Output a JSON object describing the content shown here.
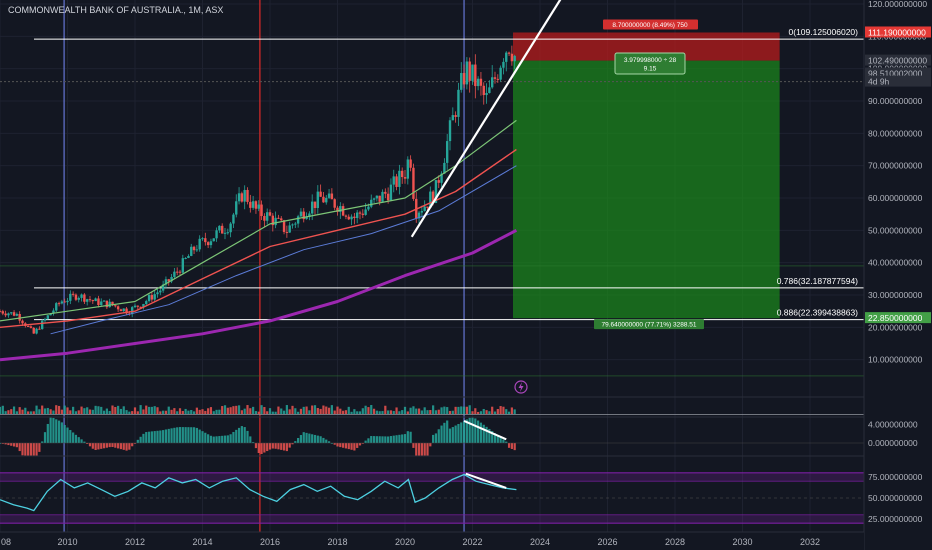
{
  "header": {
    "title": "COMMONWEALTH BANK OF AUSTRALIA., 1M, ASX"
  },
  "colors": {
    "background": "#131722",
    "up_candle": "#26a69a",
    "down_candle": "#ef5350",
    "ma_fast": "#7cc576",
    "ma_mid": "#ef5350",
    "ma_slow": "#5b7bd6",
    "ma_long": "#9c27b0",
    "stop_zone": "#b71c1c",
    "target_zone": "#1b8a1b",
    "rsi_line": "#4dd0e1",
    "trend_line": "#ffffff"
  },
  "chart_data": [
    {
      "type": "candlestick",
      "title": "COMMONWEALTH BANK OF AUSTRALIA., 1M, ASX",
      "x_ticks": [
        "08",
        "2010",
        "2012",
        "2014",
        "2016",
        "2018",
        "2020",
        "2022",
        "2024",
        "2026",
        "2028",
        "2030",
        "2032"
      ],
      "y_ticks": [
        "120.000000000",
        "110.000000000",
        "100.000000000",
        "90.000000000",
        "80.000000000",
        "70.000000000",
        "60.000000000",
        "50.000000000",
        "40.000000000",
        "30.000000000",
        "20.000000000",
        "10.000000000"
      ],
      "ylim": [
        0,
        120
      ],
      "xlim": [
        2008,
        2033.6
      ],
      "price_path": [
        [
          2008.0,
          25
        ],
        [
          2008.5,
          24
        ],
        [
          2009.0,
          18
        ],
        [
          2009.3,
          22
        ],
        [
          2009.8,
          28
        ],
        [
          2010.3,
          30
        ],
        [
          2010.8,
          28
        ],
        [
          2011.3,
          27
        ],
        [
          2011.8,
          25
        ],
        [
          2012.3,
          28
        ],
        [
          2012.8,
          32
        ],
        [
          2013.3,
          38
        ],
        [
          2013.8,
          45
        ],
        [
          2014.3,
          48
        ],
        [
          2014.8,
          52
        ],
        [
          2015.2,
          62
        ],
        [
          2015.6,
          56
        ],
        [
          2016.0,
          54
        ],
        [
          2016.5,
          50
        ],
        [
          2017.0,
          56
        ],
        [
          2017.5,
          60
        ],
        [
          2018.0,
          58
        ],
        [
          2018.5,
          54
        ],
        [
          2019.0,
          58
        ],
        [
          2019.5,
          62
        ],
        [
          2020.0,
          68
        ],
        [
          2020.15,
          74
        ],
        [
          2020.3,
          56
        ],
        [
          2020.6,
          58
        ],
        [
          2020.9,
          62
        ],
        [
          2021.2,
          75
        ],
        [
          2021.5,
          88
        ],
        [
          2021.8,
          100
        ],
        [
          2022.1,
          96
        ],
        [
          2022.4,
          90
        ],
        [
          2022.7,
          98
        ],
        [
          2022.9,
          105
        ],
        [
          2023.1,
          108
        ],
        [
          2023.3,
          102.49
        ]
      ],
      "ma_series": [
        {
          "key": "fast",
          "values": [
            [
              2008.0,
              22
            ],
            [
              2010,
              25
            ],
            [
              2012,
              28
            ],
            [
              2014,
              40
            ],
            [
              2016,
              52
            ],
            [
              2018,
              56
            ],
            [
              2020,
              60
            ],
            [
              2021.5,
              70
            ],
            [
              2023.3,
              84
            ]
          ]
        },
        {
          "key": "mid",
          "values": [
            [
              2008.0,
              20
            ],
            [
              2010,
              22
            ],
            [
              2012,
              25
            ],
            [
              2014,
              35
            ],
            [
              2016,
              45
            ],
            [
              2018,
              50
            ],
            [
              2020,
              55
            ],
            [
              2021.5,
              62
            ],
            [
              2023.3,
              75
            ]
          ]
        },
        {
          "key": "slow",
          "values": [
            [
              2009.5,
              18
            ],
            [
              2011,
              22
            ],
            [
              2013,
              27
            ],
            [
              2015,
              36
            ],
            [
              2017,
              44
            ],
            [
              2019,
              49
            ],
            [
              2021,
              56
            ],
            [
              2023.3,
              70
            ]
          ]
        },
        {
          "key": "long",
          "values": [
            [
              2008.0,
              10
            ],
            [
              2010,
              12
            ],
            [
              2012,
              15
            ],
            [
              2014,
              18
            ],
            [
              2016,
              22
            ],
            [
              2018,
              28
            ],
            [
              2020,
              36
            ],
            [
              2022,
              43
            ],
            [
              2023.3,
              50
            ]
          ]
        }
      ],
      "horizontal_lines": [
        {
          "price": 109.12500602,
          "label": "0(109.125006020)"
        },
        {
          "price": 32.187877594,
          "label": "0.786(32.187877594)"
        },
        {
          "price": 22.399438863,
          "label": "0.886(22.399438863)"
        }
      ],
      "trend_line": [
        [
          2020.2,
          48
        ],
        [
          2023.2,
          98
        ]
      ],
      "position": {
        "entry": 102.49,
        "stop": 111.19,
        "target": 22.85,
        "start_x": 2023.2,
        "end_x": 2031.1,
        "stop_label": "8.700000000 (8.49%) 750",
        "entry_label_line1": "3.979998000 ÷ 28",
        "entry_label_line2": "9.15",
        "target_label": "79.640000000 (77.71%) 3288.51"
      },
      "price_axis_labels": [
        {
          "price": 111.19,
          "text": "111.190000000",
          "style": "red"
        },
        {
          "price": 102.49,
          "text": "102.490000000",
          "style": "gray"
        },
        {
          "price": 98.51,
          "text": "98.510002000",
          "style": "gray"
        },
        {
          "price": 96.0,
          "text": "4d 9h",
          "style": "gray"
        },
        {
          "price": 22.85,
          "text": "22.850000000",
          "style": "green"
        }
      ],
      "vertical_markers": [
        {
          "x": 2009.9,
          "color": "#5c6bc0"
        },
        {
          "x": 2015.7,
          "color": "#c62828"
        },
        {
          "x": 2021.75,
          "color": "#5c6bc0"
        }
      ]
    },
    {
      "type": "bar",
      "title": "",
      "series": [
        {
          "values": "volume"
        }
      ]
    },
    {
      "type": "histogram",
      "title": "",
      "y_ticks": [
        "4.000000000",
        "0.000000000"
      ],
      "ylim": [
        -3,
        5
      ]
    },
    {
      "type": "line",
      "title": "",
      "y_ticks": [
        "75.000000000",
        "50.000000000",
        "25.000000000"
      ],
      "ylim": [
        20,
        85
      ],
      "rsi_path": [
        [
          2008.0,
          48
        ],
        [
          2008.4,
          42
        ],
        [
          2008.8,
          38
        ],
        [
          2009.0,
          35
        ],
        [
          2009.4,
          58
        ],
        [
          2009.8,
          72
        ],
        [
          2010.2,
          62
        ],
        [
          2010.6,
          68
        ],
        [
          2011.0,
          60
        ],
        [
          2011.4,
          52
        ],
        [
          2011.8,
          58
        ],
        [
          2012.2,
          68
        ],
        [
          2012.6,
          62
        ],
        [
          2013.0,
          74
        ],
        [
          2013.4,
          68
        ],
        [
          2013.8,
          72
        ],
        [
          2014.2,
          62
        ],
        [
          2014.6,
          70
        ],
        [
          2015.0,
          74
        ],
        [
          2015.4,
          60
        ],
        [
          2015.8,
          52
        ],
        [
          2016.2,
          46
        ],
        [
          2016.6,
          60
        ],
        [
          2017.0,
          66
        ],
        [
          2017.4,
          58
        ],
        [
          2017.8,
          64
        ],
        [
          2018.2,
          52
        ],
        [
          2018.6,
          48
        ],
        [
          2019.0,
          58
        ],
        [
          2019.4,
          70
        ],
        [
          2019.8,
          62
        ],
        [
          2020.1,
          72
        ],
        [
          2020.3,
          45
        ],
        [
          2020.6,
          50
        ],
        [
          2021.0,
          62
        ],
        [
          2021.4,
          72
        ],
        [
          2021.75,
          78
        ],
        [
          2022.1,
          70
        ],
        [
          2022.5,
          66
        ],
        [
          2022.9,
          62
        ],
        [
          2023.3,
          60
        ]
      ],
      "divergence_line": [
        [
          2021.8,
          79
        ],
        [
          2023.0,
          62
        ]
      ]
    }
  ]
}
